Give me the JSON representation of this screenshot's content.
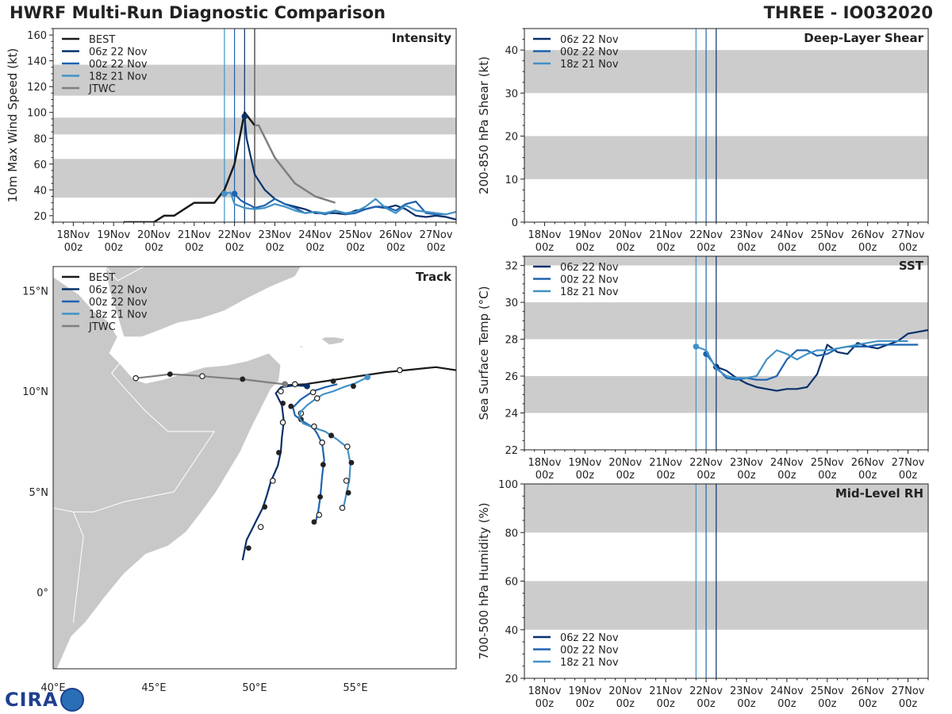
{
  "header": {
    "title_left": "HWRF Multi-Run Diagnostic Comparison",
    "title_right": "THREE - IO032020"
  },
  "logo": {
    "text": "CIRA"
  },
  "colors": {
    "best": "#1a1a1a",
    "run06": "#08306b",
    "run00": "#1f63b0",
    "run18": "#4292c6",
    "jtwc": "#7f7f7f",
    "band": "#cccccc",
    "land": "#c8c8c8",
    "ocean": "#ffffff"
  },
  "time_axis": {
    "range": [
      17.5,
      27.5
    ],
    "ticks": [
      18,
      19,
      20,
      21,
      22,
      23,
      24,
      25,
      26,
      27
    ],
    "labels_top": [
      "18Nov",
      "19Nov",
      "20Nov",
      "21Nov",
      "22Nov",
      "23Nov",
      "24Nov",
      "25Nov",
      "26Nov",
      "27Nov"
    ],
    "labels_bottom": [
      "00z",
      "00z",
      "00z",
      "00z",
      "00z",
      "00z",
      "00z",
      "00z",
      "00z",
      "00z"
    ],
    "init_lines": [
      {
        "t": 21.75,
        "run": "run18"
      },
      {
        "t": 22.0,
        "run": "run00"
      },
      {
        "t": 22.25,
        "run": "run06"
      }
    ]
  },
  "chart_data": [
    {
      "id": "intensity",
      "type": "line",
      "title": "Intensity",
      "ylabel": "10m Max Wind Speed (kt)",
      "ylim": [
        15,
        165
      ],
      "yticks": [
        20,
        40,
        60,
        80,
        100,
        120,
        140,
        160
      ],
      "bands": [
        [
          34,
          64
        ],
        [
          83,
          96
        ],
        [
          113,
          137
        ]
      ],
      "jtwc_line": 22.5,
      "legend": [
        {
          "label": "BEST",
          "key": "best"
        },
        {
          "label": "06z 22 Nov",
          "key": "run06"
        },
        {
          "label": "00z 22 Nov",
          "key": "run00"
        },
        {
          "label": "18z 21 Nov",
          "key": "run18"
        },
        {
          "label": "JTWC",
          "key": "jtwc"
        }
      ],
      "series": [
        {
          "name": "BEST",
          "key": "best",
          "width": 2.5,
          "x": [
            19.25,
            19.5,
            19.75,
            20.0,
            20.25,
            20.5,
            20.75,
            21.0,
            21.25,
            21.5,
            21.75,
            22.0,
            22.25,
            22.5
          ],
          "y": [
            15,
            15,
            15,
            15,
            20,
            20,
            25,
            30,
            30,
            30,
            40,
            60,
            100,
            90
          ]
        },
        {
          "name": "JTWC",
          "key": "jtwc",
          "width": 2.5,
          "x": [
            22.5,
            22.6,
            23.0,
            23.5,
            24.0,
            24.5
          ],
          "y": [
            90,
            90,
            65,
            45,
            35,
            30
          ]
        },
        {
          "name": "06z 22 Nov",
          "key": "run06",
          "width": 2.2,
          "marker": 22.25,
          "x": [
            22.25,
            22.3,
            22.5,
            22.75,
            23.0,
            23.25,
            23.5,
            23.75,
            24.0,
            24.25,
            24.5,
            24.75,
            25.0,
            25.25,
            25.5,
            25.75,
            26.0,
            26.25,
            26.5,
            26.75,
            27.0,
            27.25,
            27.5
          ],
          "y": [
            97,
            80,
            52,
            40,
            33,
            29,
            27,
            25,
            22,
            22,
            22,
            21,
            24,
            25,
            27,
            26,
            28,
            25,
            20,
            19,
            20,
            19,
            17
          ]
        },
        {
          "name": "00z 22 Nov",
          "key": "run00",
          "width": 2.2,
          "marker": 22.0,
          "x": [
            22.0,
            22.15,
            22.25,
            22.4,
            22.5,
            22.75,
            23.0,
            23.25,
            23.5,
            23.75,
            24.0,
            24.25,
            24.5,
            24.75,
            25.0,
            25.25,
            25.5,
            25.75,
            26.0,
            26.25,
            26.5,
            26.75,
            27.0,
            27.25
          ],
          "y": [
            37,
            32,
            30,
            28,
            26,
            28,
            33,
            29,
            26,
            22,
            23,
            21,
            24,
            21,
            22,
            25,
            27,
            27,
            24,
            29,
            31,
            22,
            21,
            21
          ]
        },
        {
          "name": "18z 21 Nov",
          "key": "run18",
          "width": 2.2,
          "marker": 21.75,
          "x": [
            21.75,
            21.9,
            22.0,
            22.25,
            22.5,
            22.75,
            23.0,
            23.25,
            23.5,
            23.75,
            24.0,
            24.25,
            24.5,
            24.75,
            25.0,
            25.25,
            25.5,
            25.75,
            26.0,
            26.25,
            26.5,
            26.75,
            27.0,
            27.25,
            27.5
          ],
          "y": [
            37,
            38,
            29,
            26,
            25,
            26,
            29,
            27,
            24,
            22,
            23,
            22,
            24,
            22,
            23,
            27,
            33,
            26,
            22,
            28,
            24,
            23,
            22,
            21,
            23
          ]
        }
      ]
    },
    {
      "id": "shear",
      "type": "line",
      "title": "Deep-Layer Shear",
      "ylabel": "200-850 hPa Shear (kt)",
      "ylim": [
        0,
        45
      ],
      "yticks": [
        0,
        10,
        20,
        30,
        40
      ],
      "bands": [
        [
          10,
          20
        ],
        [
          30,
          40
        ]
      ],
      "legend": [
        {
          "label": "06z 22 Nov",
          "key": "run06"
        },
        {
          "label": "00z 22 Nov",
          "key": "run00"
        },
        {
          "label": "18z 21 Nov",
          "key": "run18"
        }
      ],
      "series": []
    },
    {
      "id": "sst",
      "type": "line",
      "title": "SST",
      "ylabel": "Sea Surface Temp (°C)",
      "ylim": [
        22,
        32.5
      ],
      "yticks": [
        22,
        24,
        26,
        28,
        30,
        32
      ],
      "bands": [
        [
          24,
          26
        ],
        [
          28,
          30
        ],
        [
          32,
          33
        ]
      ],
      "legend": [
        {
          "label": "06z 22 Nov",
          "key": "run06"
        },
        {
          "label": "00z 22 Nov",
          "key": "run00"
        },
        {
          "label": "18z 21 Nov",
          "key": "run18"
        }
      ],
      "series": [
        {
          "name": "06z 22 Nov",
          "key": "run06",
          "width": 2.2,
          "marker": 22.25,
          "x": [
            22.25,
            22.5,
            22.75,
            23.0,
            23.25,
            23.5,
            23.75,
            24.0,
            24.25,
            24.5,
            24.75,
            25.0,
            25.25,
            25.5,
            25.75,
            26.0,
            26.25,
            26.5,
            26.75,
            27.0,
            27.25,
            27.5
          ],
          "y": [
            26.5,
            26.3,
            25.9,
            25.6,
            25.4,
            25.3,
            25.2,
            25.3,
            25.3,
            25.4,
            26.1,
            27.7,
            27.3,
            27.2,
            27.8,
            27.6,
            27.5,
            27.7,
            27.9,
            28.3,
            28.4,
            28.5
          ]
        },
        {
          "name": "00z 22 Nov",
          "key": "run00",
          "width": 2.2,
          "marker": 22.0,
          "x": [
            22.0,
            22.25,
            22.5,
            22.75,
            23.0,
            23.25,
            23.5,
            23.75,
            24.0,
            24.25,
            24.5,
            24.75,
            25.0,
            25.25,
            25.5,
            25.75,
            26.0,
            26.25,
            26.5,
            26.75,
            27.0,
            27.25
          ],
          "y": [
            27.2,
            26.5,
            25.9,
            25.8,
            25.9,
            25.8,
            25.8,
            26.0,
            26.9,
            27.4,
            27.4,
            27.1,
            27.2,
            27.5,
            27.6,
            27.6,
            27.6,
            27.7,
            27.7,
            27.7,
            27.7,
            27.7
          ]
        },
        {
          "name": "18z 21 Nov",
          "key": "run18",
          "width": 2.2,
          "marker": 21.75,
          "x": [
            21.75,
            22.0,
            22.25,
            22.5,
            22.75,
            23.0,
            23.25,
            23.5,
            23.75,
            24.0,
            24.25,
            24.5,
            24.75,
            25.0,
            25.25,
            25.5,
            25.75,
            26.0,
            26.25,
            26.5,
            26.75,
            27.0
          ],
          "y": [
            27.6,
            27.4,
            26.4,
            26.0,
            25.9,
            25.9,
            26.0,
            26.9,
            27.4,
            27.2,
            26.9,
            27.2,
            27.4,
            27.4,
            27.5,
            27.6,
            27.7,
            27.8,
            27.9,
            27.9,
            27.9,
            27.9
          ]
        }
      ]
    },
    {
      "id": "rh",
      "type": "line",
      "title": "Mid-Level RH",
      "ylabel": "700-500 hPa Humidity (%)",
      "ylim": [
        20,
        100
      ],
      "yticks": [
        20,
        40,
        60,
        80,
        100
      ],
      "bands": [
        [
          40,
          60
        ],
        [
          80,
          100
        ]
      ],
      "legend": [
        {
          "label": "06z 22 Nov",
          "key": "run06"
        },
        {
          "label": "00z 22 Nov",
          "key": "run00"
        },
        {
          "label": "18z 21 Nov",
          "key": "run18"
        }
      ],
      "series": []
    },
    {
      "id": "track",
      "type": "scatter",
      "title": "Track",
      "xlim": [
        40,
        60
      ],
      "ylim": [
        -3.8,
        16.2
      ],
      "xticks": [
        40,
        45,
        50,
        55
      ],
      "xtick_labels": [
        "40°E",
        "45°E",
        "50°E",
        "55°E"
      ],
      "yticks": [
        15,
        10,
        5,
        0
      ],
      "ytick_labels": [
        "15°N",
        "10°N",
        "5°N",
        "0°"
      ],
      "legend": [
        {
          "label": "BEST",
          "key": "best"
        },
        {
          "label": "06z 22 Nov",
          "key": "run06"
        },
        {
          "label": "00z 22 Nov",
          "key": "run00"
        },
        {
          "label": "18z 21 Nov",
          "key": "run18"
        },
        {
          "label": "JTWC",
          "key": "jtwc"
        }
      ],
      "series": [
        {
          "name": "BEST",
          "key": "best",
          "width": 2.2,
          "lon": [
            51.5,
            52.5,
            53.5,
            54.5,
            55.5,
            56.5,
            57.5,
            58.5,
            59.0,
            60.0
          ],
          "lat": [
            10.3,
            10.35,
            10.5,
            10.65,
            10.8,
            10.95,
            11.05,
            11.15,
            11.2,
            11.05
          ],
          "open": [
            57.2
          ],
          "filled": [
            53.9
          ]
        },
        {
          "name": "JTWC",
          "key": "jtwc",
          "width": 2.2,
          "lon": [
            44.1,
            45.0,
            45.8,
            47.0,
            47.4,
            48.6,
            49.4,
            50.2,
            51.0,
            51.5
          ],
          "lat": [
            10.65,
            10.75,
            10.85,
            10.78,
            10.75,
            10.65,
            10.6,
            10.5,
            10.4,
            10.35
          ],
          "open": [
            44.1,
            47.4,
            51.5
          ],
          "filled": [
            45.8,
            49.4
          ]
        },
        {
          "name": "06z 22 Nov",
          "key": "run06",
          "width": 2.2,
          "lon": [
            52.6,
            52.0,
            51.3,
            51.05,
            51.35,
            51.45,
            51.35,
            51.3,
            51.15,
            50.8,
            50.6,
            50.4,
            50.1,
            49.9,
            49.6,
            49.4
          ],
          "lat": [
            10.25,
            10.3,
            10.2,
            9.9,
            9.3,
            8.5,
            7.7,
            7.0,
            6.3,
            5.5,
            4.8,
            4.2,
            3.6,
            3.2,
            2.6,
            1.6
          ],
          "open": [
            52.0,
            51.3,
            51.4,
            50.9,
            50.3
          ],
          "filled": [
            51.4,
            51.2,
            50.5,
            49.7
          ],
          "open_lat": [
            10.35,
            10.0,
            8.45,
            5.55,
            3.25
          ],
          "filled_lat": [
            9.4,
            6.95,
            4.25,
            2.2
          ]
        },
        {
          "name": "00z 22 Nov",
          "key": "run00",
          "width": 2.2,
          "lon": [
            54.1,
            53.5,
            52.9,
            52.3,
            51.9,
            52.0,
            52.4,
            52.9,
            53.1,
            53.35,
            53.45,
            53.35,
            53.25,
            53.15,
            53.0
          ],
          "lat": [
            10.35,
            10.2,
            10.0,
            9.6,
            9.2,
            8.8,
            8.5,
            8.2,
            7.9,
            7.4,
            6.6,
            5.8,
            4.7,
            4.0,
            3.4
          ],
          "open": [
            52.9,
            52.3,
            53.35,
            53.2
          ],
          "filled": [
            51.8,
            52.3,
            53.8,
            53.4,
            53.25,
            52.95
          ],
          "open_lat": [
            9.95,
            8.9,
            7.45,
            3.85
          ],
          "filled_lat": [
            9.25,
            8.6,
            7.8,
            6.35,
            4.75,
            3.5
          ]
        },
        {
          "name": "18z 21 Nov",
          "key": "run18",
          "width": 2.2,
          "lon": [
            55.6,
            55.0,
            54.4,
            53.9,
            53.4,
            53.0,
            52.6,
            52.3,
            52.2,
            52.4,
            52.9,
            53.5,
            54.1,
            54.6,
            54.75,
            54.7,
            54.55,
            54.45,
            54.35
          ],
          "lat": [
            10.7,
            10.4,
            10.2,
            10.0,
            9.85,
            9.6,
            9.3,
            9.0,
            8.7,
            8.4,
            8.2,
            8.0,
            7.6,
            7.2,
            6.4,
            5.6,
            4.9,
            4.4,
            4.1
          ],
          "open": [
            53.1,
            52.95,
            54.6,
            54.55,
            54.35
          ],
          "filled": [
            54.9,
            53.8,
            54.8,
            54.65
          ],
          "open_lat": [
            9.65,
            8.25,
            7.25,
            5.55,
            4.2
          ],
          "filled_lat": [
            10.25,
            7.8,
            6.45,
            4.95
          ]
        }
      ]
    }
  ]
}
